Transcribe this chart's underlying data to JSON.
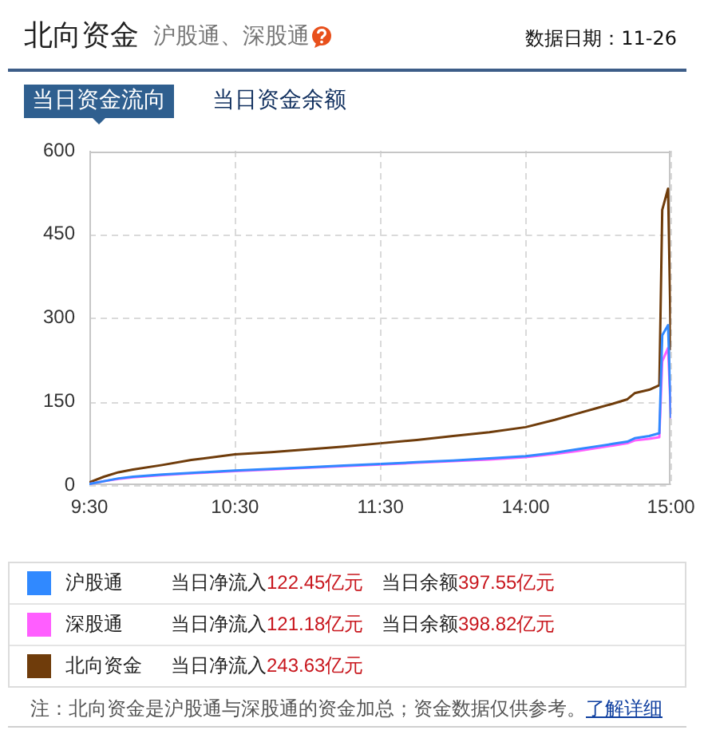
{
  "chart_data": [
    {
      "type": "line",
      "title": "北向资金",
      "subtitle": "沪股通、深股通",
      "x": [
        9.5,
        9.6,
        9.7,
        9.8,
        10,
        10.2,
        10.5,
        10.75,
        11,
        11.25,
        11.5
      ],
      "series": [
        {
          "name": "沪股通",
          "color": "#3089ff",
          "values": [
            2,
            7,
            12,
            15,
            19,
            22,
            26,
            29,
            32,
            35,
            38
          ]
        },
        {
          "name": "深股通",
          "color": "#ff5eff",
          "values": [
            2,
            7,
            11,
            14,
            18,
            21,
            25,
            28,
            31,
            34,
            37
          ]
        },
        {
          "name": "北向资金",
          "color": "#6f3c0b",
          "values": [
            5,
            15,
            23,
            28,
            36,
            45,
            55,
            59,
            64,
            69,
            75
          ]
        }
      ],
      "xlim": [
        9.5,
        11.5
      ],
      "xticks": [
        {
          "value": 9.5,
          "label": "9:30"
        },
        {
          "value": 10.5,
          "label": "10:30"
        },
        {
          "value": 11.5,
          "label": "11:30"
        }
      ],
      "ylim": [
        0,
        600
      ],
      "yticks": [
        0,
        150,
        300,
        450,
        600
      ],
      "grid": true,
      "legend": "bottom",
      "annotations": [
        "数据日期：11-26",
        "当日资金流向",
        "当日资金余额",
        "当日净流入122.45亿元",
        "当日余额397.55亿元",
        "当日净流入121.18亿元",
        "当日余额398.82亿元",
        "当日净流入243.63亿元",
        "注：北向资金是沪股通与深股通的资金加总；资金数据仅供参考。",
        "了解详细"
      ]
    },
    {
      "type": "line",
      "x": [
        13,
        13.25,
        13.5,
        13.75,
        14,
        14.2,
        14.35,
        14.5,
        14.6,
        14.7,
        14.75,
        14.85,
        14.92,
        14.94,
        14.98,
        15
      ],
      "series": [
        {
          "color": "#3089ff",
          "values": [
            38,
            41,
            44,
            48,
            52,
            58,
            64,
            70,
            74,
            78,
            84,
            88,
            93,
            269,
            287,
            122
          ]
        },
        {
          "color": "#ff5eff",
          "values": [
            37,
            40,
            43,
            46,
            50,
            56,
            61,
            67,
            71,
            75,
            80,
            83,
            86,
            222,
            246,
            121
          ]
        },
        {
          "color": "#6f3c0b",
          "values": [
            75,
            81,
            88,
            95,
            104,
            117,
            128,
            139,
            146,
            154,
            165,
            171,
            179,
            494,
            532,
            244
          ]
        }
      ],
      "xlim": [
        13,
        15
      ],
      "xticks": [
        {
          "value": 14,
          "label": "14:00"
        },
        {
          "value": 15,
          "label": "15:00"
        }
      ],
      "ylim": [
        0,
        600
      ],
      "yticks": [
        0,
        150,
        300,
        450,
        600
      ],
      "grid": true,
      "tick_labels": "x"
    }
  ]
}
